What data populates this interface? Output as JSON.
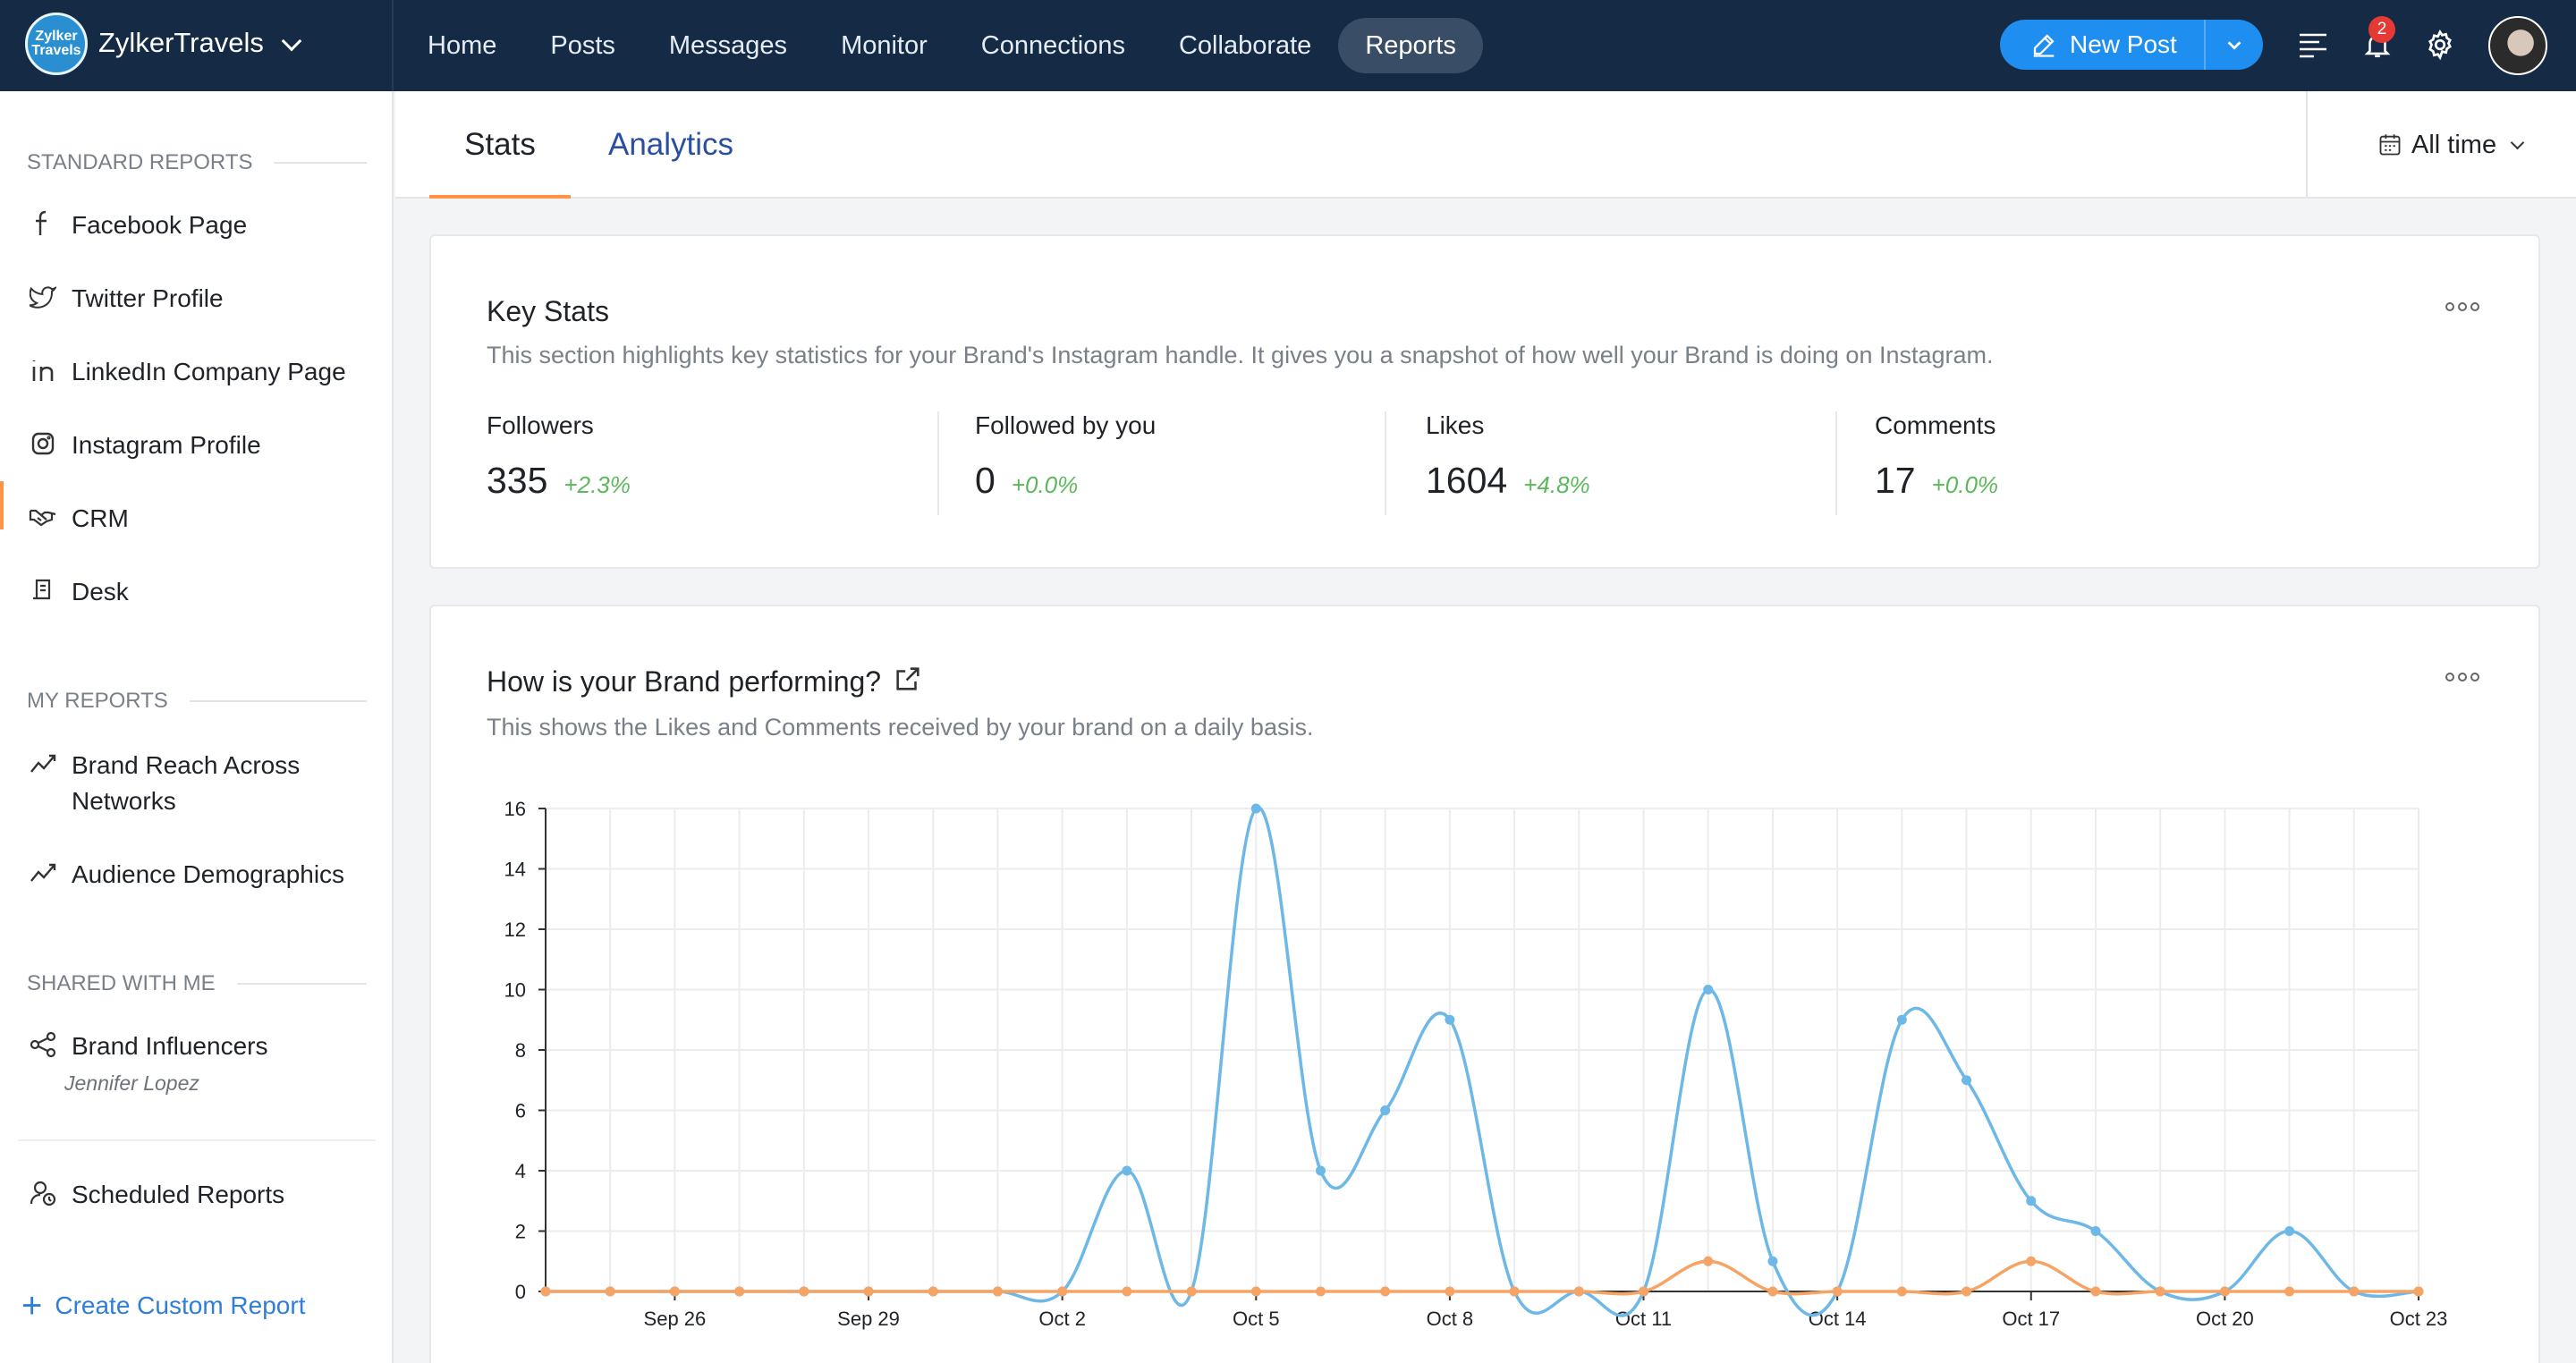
{
  "topbar": {
    "brand_name": "ZylkerTravels",
    "brand_logo_text": "Zylker Travels",
    "nav": [
      {
        "label": "Home"
      },
      {
        "label": "Posts"
      },
      {
        "label": "Messages"
      },
      {
        "label": "Monitor"
      },
      {
        "label": "Connections"
      },
      {
        "label": "Collaborate"
      },
      {
        "label": "Reports",
        "active": true
      }
    ],
    "new_post_label": "New Post",
    "notification_count": "2"
  },
  "sidebar": {
    "standard_reports_heading": "STANDARD REPORTS",
    "standard_reports": [
      {
        "label": "Facebook Page",
        "icon": "facebook-icon"
      },
      {
        "label": "Twitter Profile",
        "icon": "twitter-icon"
      },
      {
        "label": "LinkedIn Company Page",
        "icon": "linkedin-icon"
      },
      {
        "label": "Instagram Profile",
        "icon": "instagram-icon"
      },
      {
        "label": "CRM",
        "icon": "handshake-icon"
      },
      {
        "label": "Desk",
        "icon": "desk-icon"
      }
    ],
    "my_reports_heading": "MY REPORTS",
    "my_reports": [
      {
        "label": "Brand Reach Across Networks",
        "line1": "Brand Reach Across",
        "line2": "Networks",
        "icon": "trend-icon"
      },
      {
        "label": "Audience Demographics",
        "icon": "trend-icon"
      }
    ],
    "shared_heading": "SHARED WITH ME",
    "shared": [
      {
        "label": "Brand Influencers",
        "sub": "Jennifer Lopez",
        "icon": "share-icon"
      }
    ],
    "scheduled_label": "Scheduled Reports",
    "create_label": "Create Custom Report"
  },
  "tabs": {
    "stats": "Stats",
    "analytics": "Analytics",
    "time_filter": "All time"
  },
  "key_stats": {
    "title": "Key Stats",
    "description": "This section highlights key statistics for your Brand's Instagram handle. It gives you a snapshot of how well your Brand is doing on Instagram.",
    "items": [
      {
        "label": "Followers",
        "value": "335",
        "change": "+2.3%"
      },
      {
        "label": "Followed by you",
        "value": "0",
        "change": "+0.0%"
      },
      {
        "label": "Likes",
        "value": "1604",
        "change": "+4.8%"
      },
      {
        "label": "Comments",
        "value": "17",
        "change": "+0.0%"
      }
    ]
  },
  "performance": {
    "title": "How is your Brand performing?",
    "description": "This shows the Likes and Comments received by your brand on a daily basis."
  },
  "colors": {
    "likes_line": "#6db8e6",
    "comments_line": "#f5a466",
    "accent": "#ff9446",
    "link": "#2f7ed8",
    "positive": "#5cb85c"
  },
  "chart_data": {
    "type": "line",
    "title": "",
    "xlabel": "",
    "ylabel": "",
    "x": [
      "Sep 24",
      "Sep 25",
      "Sep 26",
      "Sep 27",
      "Sep 28",
      "Sep 29",
      "Sep 30",
      "Oct 1",
      "Oct 2",
      "Oct 3",
      "Oct 4",
      "Oct 5",
      "Oct 6",
      "Oct 7",
      "Oct 8",
      "Oct 9",
      "Oct 10",
      "Oct 11",
      "Oct 12",
      "Oct 13",
      "Oct 14",
      "Oct 15",
      "Oct 16",
      "Oct 17",
      "Oct 18",
      "Oct 19",
      "Oct 20",
      "Oct 21",
      "Oct 22",
      "Oct 23"
    ],
    "x_tick_labels": [
      "Sep 26",
      "Sep 29",
      "Oct 2",
      "Oct 5",
      "Oct 8",
      "Oct 11",
      "Oct 14",
      "Oct 17",
      "Oct 20",
      "Oct 23"
    ],
    "series": [
      {
        "values": [
          0,
          0,
          0,
          0,
          0,
          0,
          0,
          0,
          0,
          4,
          0,
          16,
          4,
          6,
          9,
          0,
          0,
          0,
          10,
          1,
          0,
          9,
          7,
          3,
          2,
          0,
          0,
          2,
          0,
          0
        ],
        "color": "#6db8e6"
      },
      {
        "values": [
          0,
          0,
          0,
          0,
          0,
          0,
          0,
          0,
          0,
          0,
          0,
          0,
          0,
          0,
          0,
          0,
          0,
          0,
          1,
          0,
          0,
          0,
          0,
          1,
          0,
          0,
          0,
          0,
          0,
          0
        ],
        "color": "#f5a466"
      }
    ],
    "ylim": [
      0,
      16
    ],
    "y_ticks": [
      0,
      2,
      4,
      6,
      8,
      10,
      12,
      14,
      16
    ],
    "grid": true
  }
}
